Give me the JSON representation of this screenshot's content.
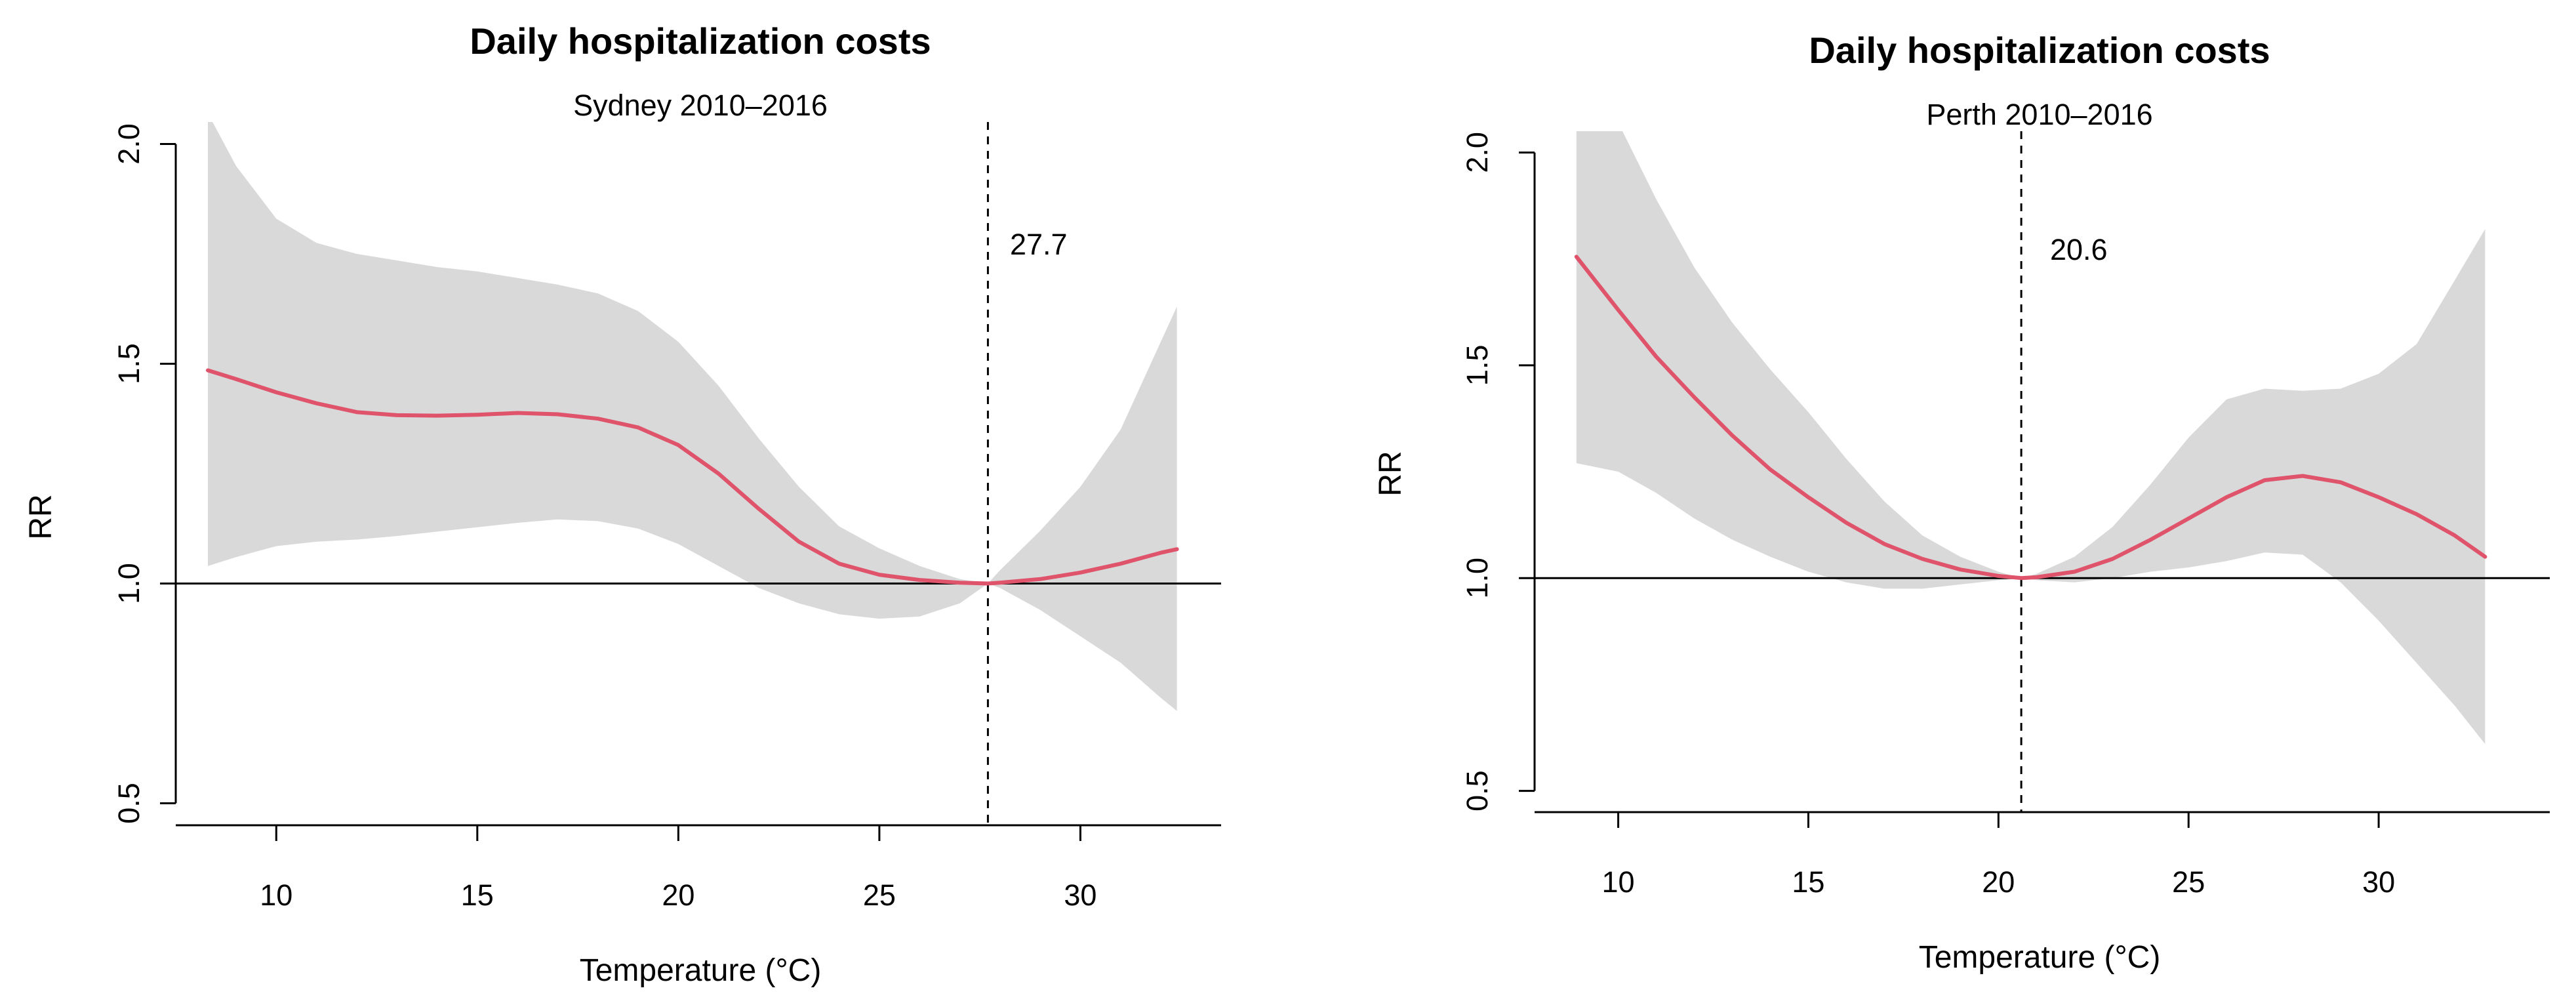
{
  "chart_data": [
    {
      "type": "line",
      "title": "Daily hospitalization costs",
      "subtitle": "Sydney 2010–2016",
      "xlabel": "Temperature (°C)",
      "ylabel": "RR",
      "xlim": [
        7.5,
        33.5
      ],
      "ylim": [
        0.45,
        2.05
      ],
      "xticks": [
        10,
        15,
        20,
        25,
        30
      ],
      "xtick_labels": [
        "10",
        "15",
        "20",
        "25",
        "30"
      ],
      "yticks": [
        0.5,
        1.0,
        1.5,
        2.0
      ],
      "ytick_labels": [
        "0.5",
        "1.0",
        "1.5",
        "2.0"
      ],
      "reference_line": 1.0,
      "mmt": 27.7,
      "mmt_label": "27.7",
      "colors": {
        "line": "#df536b",
        "ci": "#d9d9d9",
        "axis": "#000000"
      },
      "series": [
        {
          "name": "RR",
          "x": [
            8.3,
            9,
            10,
            11,
            12,
            13,
            14,
            15,
            16,
            17,
            18,
            19,
            20,
            21,
            22,
            23,
            24,
            25,
            26,
            27,
            27.7,
            28,
            29,
            30,
            31,
            32,
            32.4
          ],
          "values": [
            1.485,
            1.465,
            1.435,
            1.41,
            1.39,
            1.383,
            1.382,
            1.384,
            1.388,
            1.385,
            1.375,
            1.355,
            1.315,
            1.25,
            1.17,
            1.095,
            1.045,
            1.02,
            1.008,
            1.002,
            1.0,
            1.002,
            1.01,
            1.025,
            1.045,
            1.07,
            1.078
          ],
          "ci_lower": [
            1.04,
            1.06,
            1.085,
            1.095,
            1.1,
            1.108,
            1.118,
            1.128,
            1.138,
            1.146,
            1.142,
            1.125,
            1.09,
            1.04,
            0.99,
            0.955,
            0.93,
            0.92,
            0.925,
            0.955,
            1.0,
            0.99,
            0.94,
            0.88,
            0.82,
            0.74,
            0.71
          ],
          "ci_upper": [
            2.07,
            1.95,
            1.83,
            1.775,
            1.75,
            1.735,
            1.72,
            1.71,
            1.695,
            1.68,
            1.66,
            1.62,
            1.55,
            1.45,
            1.33,
            1.22,
            1.13,
            1.08,
            1.04,
            1.01,
            1.0,
            1.03,
            1.12,
            1.22,
            1.35,
            1.55,
            1.63
          ]
        }
      ]
    },
    {
      "type": "line",
      "title": "Daily hospitalization costs",
      "subtitle": "Perth 2010–2016",
      "xlabel": "Temperature (°C)",
      "ylabel": "RR",
      "xlim": [
        7.8,
        34.5
      ],
      "ylim": [
        0.45,
        2.05
      ],
      "xticks": [
        10,
        15,
        20,
        25,
        30
      ],
      "xtick_labels": [
        "10",
        "15",
        "20",
        "25",
        "30"
      ],
      "yticks": [
        0.5,
        1.0,
        1.5,
        2.0
      ],
      "ytick_labels": [
        "0.5",
        "1.0",
        "1.5",
        "2.0"
      ],
      "reference_line": 1.0,
      "mmt": 20.6,
      "mmt_label": "20.6",
      "colors": {
        "line": "#df536b",
        "ci": "#d9d9d9",
        "axis": "#000000"
      },
      "series": [
        {
          "name": "RR",
          "x": [
            8.9,
            10,
            11,
            12,
            13,
            14,
            15,
            16,
            17,
            18,
            19,
            20,
            20.6,
            21,
            22,
            23,
            24,
            25,
            26,
            27,
            28,
            29,
            30,
            31,
            32,
            32.8
          ],
          "values": [
            1.755,
            1.63,
            1.52,
            1.425,
            1.335,
            1.255,
            1.19,
            1.13,
            1.08,
            1.045,
            1.02,
            1.005,
            1.0,
            1.002,
            1.015,
            1.045,
            1.09,
            1.14,
            1.19,
            1.23,
            1.24,
            1.225,
            1.19,
            1.15,
            1.1,
            1.05
          ],
          "ci_lower": [
            1.27,
            1.25,
            1.2,
            1.14,
            1.09,
            1.05,
            1.015,
            0.99,
            0.975,
            0.975,
            0.985,
            0.995,
            1.0,
            0.995,
            0.99,
            1.0,
            1.015,
            1.025,
            1.04,
            1.06,
            1.055,
            0.99,
            0.9,
            0.8,
            0.7,
            0.61
          ],
          "ci_upper": [
            2.07,
            2.07,
            1.89,
            1.73,
            1.6,
            1.49,
            1.39,
            1.28,
            1.18,
            1.1,
            1.05,
            1.015,
            1.0,
            1.01,
            1.05,
            1.12,
            1.22,
            1.33,
            1.42,
            1.445,
            1.44,
            1.445,
            1.48,
            1.55,
            1.7,
            1.82
          ]
        }
      ]
    }
  ]
}
